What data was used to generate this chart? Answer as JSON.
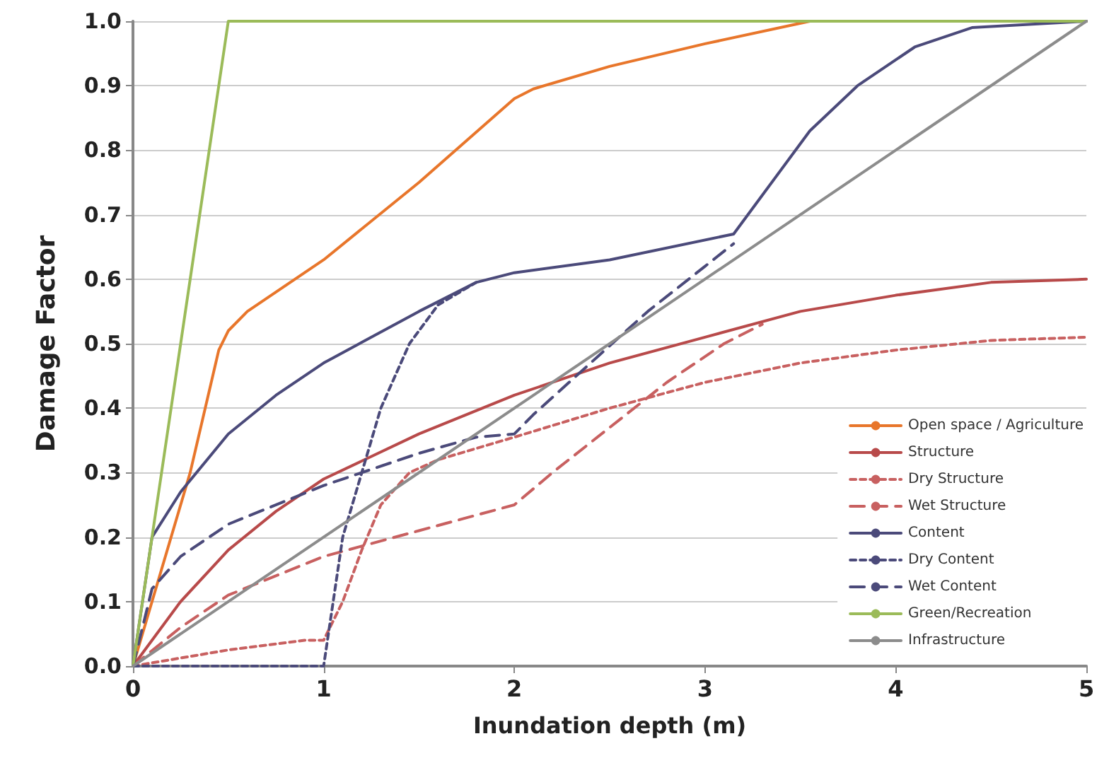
{
  "chart_data": {
    "type": "line",
    "xlabel": "Inundation depth (m)",
    "ylabel": "Damage Factor",
    "xlim": [
      0,
      5
    ],
    "xticks": [
      0,
      1,
      2,
      3,
      4,
      5
    ],
    "ylim": [
      0,
      1
    ],
    "yticks": [
      {
        "value": 0,
        "label": "0.0"
      },
      0.1,
      0.2,
      0.3,
      0.4,
      0.5,
      0.6,
      0.7,
      0.8,
      0.9,
      {
        "value": 1,
        "label": "1.0"
      }
    ],
    "grid": "y",
    "legend": "bottom right",
    "marker": "none",
    "series": [
      {
        "name": "Open space / Agriculture",
        "color": "#e8762b",
        "line_style": "solid",
        "x": [
          0,
          0.1,
          0.3,
          0.45,
          0.5,
          0.6,
          1.0,
          1.5,
          2.0,
          2.1,
          2.5,
          3.0,
          3.55,
          5
        ],
        "values": [
          0,
          0.1,
          0.3,
          0.49,
          0.52,
          0.55,
          0.63,
          0.75,
          0.88,
          0.895,
          0.93,
          0.965,
          1.0,
          1.0
        ]
      },
      {
        "name": "Structure",
        "color": "#b84a4a",
        "line_style": "solid",
        "x": [
          0,
          0.25,
          0.5,
          0.75,
          1,
          1.5,
          2,
          2.5,
          3,
          3.5,
          4,
          4.5,
          5
        ],
        "values": [
          0,
          0.1,
          0.18,
          0.24,
          0.29,
          0.36,
          0.42,
          0.47,
          0.51,
          0.55,
          0.575,
          0.595,
          0.6
        ]
      },
      {
        "name": "Dry Structure",
        "color": "#c86060",
        "line_style": "dotted",
        "x": [
          0,
          0.5,
          0.9,
          1.0,
          1.1,
          1.2,
          1.3,
          1.45,
          1.6,
          2,
          2.5,
          3,
          3.5,
          4,
          4.5,
          5
        ],
        "values": [
          0,
          0.025,
          0.04,
          0.04,
          0.1,
          0.18,
          0.25,
          0.3,
          0.32,
          0.355,
          0.4,
          0.44,
          0.47,
          0.49,
          0.505,
          0.51
        ]
      },
      {
        "name": "Wet Structure",
        "color": "#c86060",
        "line_style": "dashed",
        "x": [
          0,
          0.25,
          0.5,
          1,
          1.5,
          2,
          2.2,
          2.5,
          2.8,
          3.1,
          3.3
        ],
        "values": [
          0,
          0.06,
          0.11,
          0.17,
          0.21,
          0.25,
          0.3,
          0.37,
          0.44,
          0.5,
          0.53
        ]
      },
      {
        "name": "Content",
        "color": "#4b4a7a",
        "line_style": "solid",
        "x": [
          0,
          0.1,
          0.25,
          0.5,
          0.75,
          1,
          1.5,
          1.8,
          2,
          2.5,
          3.15,
          3.3,
          3.55,
          3.8,
          4.1,
          4.4,
          5
        ],
        "values": [
          0,
          0.2,
          0.27,
          0.36,
          0.42,
          0.47,
          0.55,
          0.595,
          0.61,
          0.63,
          0.67,
          0.73,
          0.83,
          0.9,
          0.96,
          0.99,
          1.0
        ]
      },
      {
        "name": "Dry Content",
        "color": "#4b4a7a",
        "line_style": "dotted",
        "x": [
          0,
          1,
          1.05,
          1.1,
          1.2,
          1.3,
          1.45,
          1.6,
          1.8
        ],
        "values": [
          0,
          0,
          0.1,
          0.2,
          0.3,
          0.4,
          0.5,
          0.56,
          0.595
        ]
      },
      {
        "name": "Wet Content",
        "color": "#4b4a7a",
        "line_style": "dashed",
        "x": [
          0,
          0.1,
          0.25,
          0.5,
          1,
          1.2,
          1.5,
          1.8,
          2,
          2.1,
          2.4,
          2.7,
          3,
          3.15
        ],
        "values": [
          0,
          0.12,
          0.17,
          0.22,
          0.28,
          0.3,
          0.33,
          0.355,
          0.36,
          0.39,
          0.47,
          0.55,
          0.62,
          0.655
        ]
      },
      {
        "name": "Green/Recreation",
        "color": "#9bbb59",
        "line_style": "solid",
        "x": [
          0,
          0.5,
          5
        ],
        "values": [
          0,
          1.0,
          1.0
        ]
      },
      {
        "name": "Infrastructure",
        "color": "#8c8c8c",
        "line_style": "solid",
        "x": [
          0,
          5
        ],
        "values": [
          0,
          1
        ]
      }
    ]
  }
}
